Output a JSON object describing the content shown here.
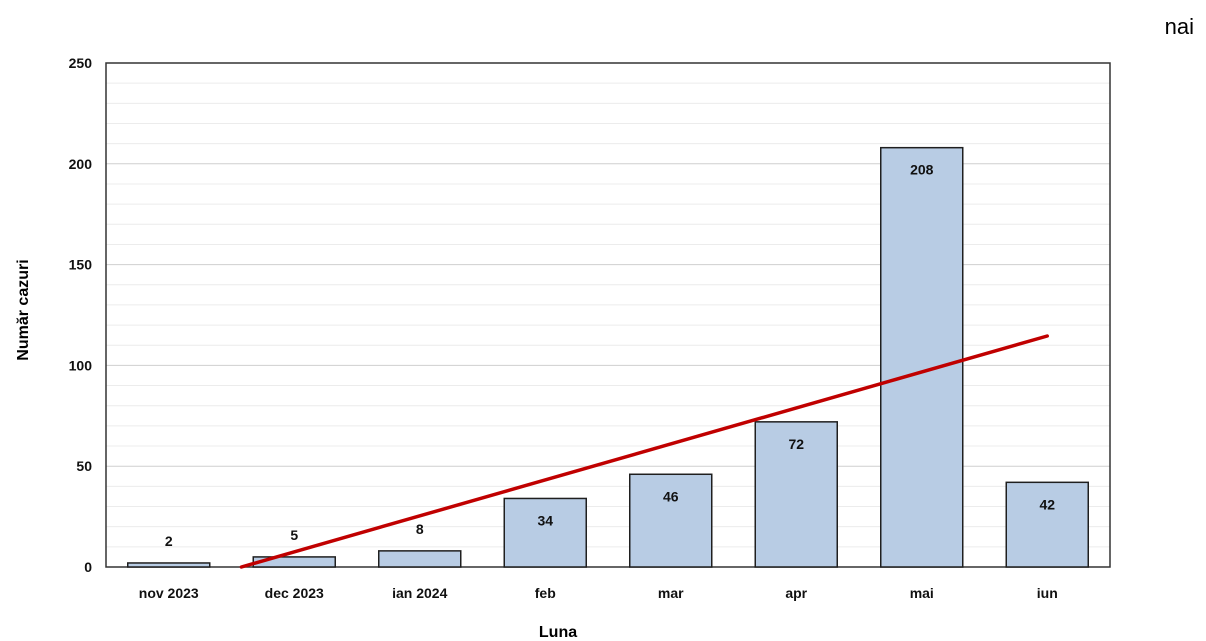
{
  "corner_text": "nai",
  "chart_data": {
    "type": "bar",
    "categories": [
      "nov 2023",
      "dec 2023",
      "ian 2024",
      "feb",
      "mar",
      "apr",
      "mai",
      "iun"
    ],
    "values": [
      2,
      5,
      8,
      34,
      46,
      72,
      208,
      42
    ],
    "xlabel": "Luna",
    "ylabel": "Număr cazuri",
    "ylim": [
      0,
      250
    ],
    "yticks": [
      0,
      50,
      100,
      150,
      200,
      250
    ],
    "grid": true,
    "legend": "none",
    "trendline": {
      "type": "linear",
      "color": "#c00000"
    },
    "colors": {
      "bar_fill": "#b8cce4",
      "bar_stroke": "#1f1f1f",
      "trend": "#c00000",
      "grid": "#d9d9d9"
    }
  }
}
